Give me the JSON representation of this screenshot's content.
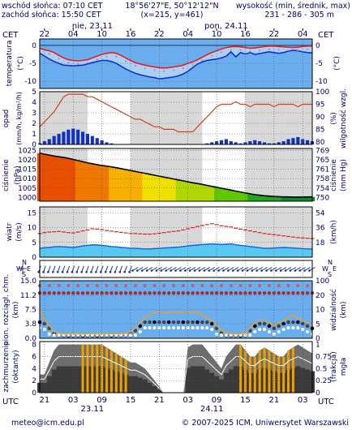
{
  "header": {
    "sunrise": "wschód słońca: 07:10 CET",
    "sunset": "zachód słońca: 15:50 CET",
    "coords": "18°56'27\"E, 50°12'12\"N",
    "grid": "(x=215, y=461)",
    "elev_title": "wysokość (min, średnik, max)",
    "elev_values": "231 - 286 - 305 m"
  },
  "top_axis": {
    "tz_left": "CET",
    "tz_right": "CET",
    "hours": [
      "22",
      "04",
      "10",
      "16",
      "22",
      "04",
      "10",
      "16",
      "22",
      "04"
    ],
    "day1": "nie, 23.11",
    "day2": "pon, 24.11"
  },
  "bottom_axis": {
    "tz_left": "UTC",
    "tz_right": "UTC",
    "hours": [
      "21",
      "03",
      "09",
      "15",
      "21",
      "03",
      "09",
      "15",
      "21",
      "03"
    ],
    "day1": "23.11",
    "day2": "24.11"
  },
  "footer": {
    "email": "meteo@icm.edu.pl",
    "copyright": "© 2007-2025 ICM, Uniwersytet Warszawski"
  },
  "panels": {
    "temperature": {
      "left_label": "temperatura",
      "left_unit": "(°C)",
      "right_unit": "(°C)",
      "ticks": [
        "0",
        "-5",
        "-10"
      ]
    },
    "precip": {
      "left_label": "opad",
      "left_unit": "(mm/h, kg/m²/h)",
      "right_label": "wilgotność wzgl.",
      "right_unit": "(%)",
      "left_ticks": [
        "5",
        "4",
        "3",
        "2",
        "1",
        "0"
      ],
      "right_ticks": [
        "100",
        "95",
        "90",
        "85",
        "80"
      ]
    },
    "pressure": {
      "left_label": "ciśnienie",
      "left_unit": "(hPa)",
      "right_label": "ciśnienie",
      "right_unit": "(mm Hg)",
      "left_ticks": [
        "1025",
        "1020",
        "1015",
        "1010",
        "1005",
        "1000"
      ],
      "right_ticks": [
        "769",
        "765",
        "761",
        "758",
        "754",
        "750"
      ]
    },
    "wind": {
      "left_label": "wiatr",
      "left_unit": "(m/s)",
      "right_unit": "(km/h)",
      "left_ticks": [
        "15",
        "10",
        "5",
        "0"
      ],
      "right_ticks": [
        "54",
        "36",
        "18"
      ]
    },
    "direction": {
      "compass": "WNE S"
    },
    "cloud": {
      "left_label": "pion. rozciągł. chm.",
      "left_unit": "(km)",
      "right_label": "widzialność",
      "right_unit": "(km)",
      "left_ticks": [
        "15.0",
        "11.2",
        "7.5",
        "3.8",
        "0.0"
      ],
      "right_ticks": [
        "100",
        "20",
        "10",
        "5",
        "0"
      ]
    },
    "cover": {
      "left_label": "zachmurzenie",
      "left_unit": "(oktanty)",
      "right_label": "(frakcja)",
      "right_unit": "mgła",
      "left_ticks": [
        "8",
        "6",
        "4",
        "2",
        "0"
      ],
      "right_ticks": [
        "1",
        "0.75",
        "0.5",
        "0.25",
        "0"
      ]
    }
  },
  "colors": {
    "temp": "#e02020",
    "dew": "#1030d0",
    "rh": "#d04020",
    "pressure": "#000000",
    "wind_gust": "#e02020",
    "wind": "#1060e0",
    "vis": "#f0a020",
    "cover": "#f0a000",
    "rain": "#1030c0"
  },
  "chart_data": {
    "type": "line",
    "x": [
      "21",
      "22",
      "23",
      "00",
      "01",
      "02",
      "03",
      "04",
      "05",
      "06",
      "07",
      "08",
      "09",
      "10",
      "11",
      "12",
      "13",
      "14",
      "15",
      "16",
      "17",
      "18",
      "19",
      "20",
      "21",
      "22",
      "23",
      "00",
      "01",
      "02",
      "03",
      "04",
      "05",
      "06",
      "07",
      "08",
      "09",
      "10",
      "11",
      "12",
      "13",
      "14",
      "15",
      "16",
      "17",
      "18",
      "19",
      "20",
      "21",
      "22",
      "23",
      "00",
      "01",
      "02",
      "03",
      "04",
      "05",
      "06"
    ],
    "temperature": [
      -0.8,
      -1.2,
      -1.5,
      -2.0,
      -2.8,
      -3.5,
      -4.0,
      -4.2,
      -4.3,
      -4.2,
      -4.0,
      -3.5,
      -3.0,
      -2.5,
      -2.2,
      -2.0,
      -2.2,
      -2.8,
      -3.5,
      -4.2,
      -4.8,
      -5.2,
      -5.5,
      -5.8,
      -6.0,
      -6.2,
      -6.3,
      -6.2,
      -6.0,
      -5.8,
      -5.5,
      -5.0,
      -4.6,
      -4.0,
      -3.3,
      -2.6,
      -2.0,
      -1.5,
      -1.0,
      -0.6,
      -0.4,
      -0.3,
      -0.4,
      -0.6,
      -0.8,
      -0.7,
      -0.5,
      -0.3,
      -0.2,
      -0.2,
      -0.3,
      -0.4,
      -0.5,
      -0.6,
      -0.5,
      -0.3,
      -0.2,
      -0.2
    ],
    "dew_point": [
      -2.2,
      -3.0,
      -3.8,
      -4.5,
      -5.0,
      -5.5,
      -5.6,
      -5.7,
      -5.6,
      -5.5,
      -5.2,
      -4.8,
      -4.5,
      -4.2,
      -4.2,
      -4.5,
      -5.0,
      -5.8,
      -6.6,
      -7.2,
      -7.8,
      -8.2,
      -8.5,
      -8.8,
      -9.0,
      -9.3,
      -9.2,
      -9.0,
      -8.8,
      -8.5,
      -8.0,
      -7.2,
      -6.2,
      -5.2,
      -4.6,
      -4.2,
      -4.0,
      -3.8,
      -3.5,
      -3.0,
      -1.8,
      -3.2,
      -2.0,
      -2.4,
      -2.0,
      -2.5,
      -2.3,
      -2.0,
      -1.8,
      -2.0,
      -2.2,
      -2.0,
      -1.6,
      -1.4,
      -1.5,
      -1.8,
      -2.0,
      -2.1
    ],
    "precip": [
      0.1,
      0.3,
      0.5,
      0.8,
      1.0,
      1.2,
      1.4,
      1.5,
      1.4,
      1.2,
      1.0,
      0.8,
      0.6,
      0.4,
      0.2,
      0.1,
      0,
      0,
      0,
      0,
      0,
      0,
      0,
      0,
      0,
      0,
      0,
      0,
      0,
      0,
      0,
      0,
      0,
      0,
      0,
      0.1,
      0.2,
      0.3,
      0.4,
      0.5,
      0.3,
      0.2,
      0.1,
      0.2,
      0.3,
      0.4,
      0.3,
      0.2,
      0.1,
      0.1,
      0.2,
      0.3,
      0.5,
      0.6,
      0.7,
      0.5,
      0.4,
      0.3
    ],
    "humidity": [
      86,
      88,
      90,
      92,
      95,
      98,
      99,
      99,
      99,
      99,
      98,
      98,
      97,
      96,
      95,
      94,
      93,
      92,
      91,
      90,
      89,
      89,
      88,
      87,
      86,
      86,
      85,
      85,
      85,
      84,
      84,
      84,
      84,
      86,
      88,
      90,
      92,
      94,
      95,
      95,
      95,
      96,
      95,
      95,
      94,
      95,
      95,
      95,
      95,
      94,
      95,
      95,
      95,
      95,
      94,
      95,
      95,
      95
    ],
    "pressure_hPa": [
      1023.5,
      1023.0,
      1022.5,
      1022.0,
      1021.6,
      1021.2,
      1020.8,
      1020.2,
      1019.6,
      1019.0,
      1018.4,
      1017.9,
      1017.4,
      1017.0,
      1016.6,
      1016.2,
      1015.8,
      1015.3,
      1014.8,
      1014.3,
      1013.8,
      1013.3,
      1012.8,
      1012.3,
      1011.8,
      1011.3,
      1010.8,
      1010.3,
      1009.8,
      1009.3,
      1008.8,
      1008.3,
      1007.8,
      1007.4,
      1006.9,
      1006.4,
      1005.9,
      1005.4,
      1004.9,
      1004.4,
      1003.9,
      1003.4,
      1002.9,
      1002.4,
      1001.9,
      1001.5,
      1001.2,
      1000.9,
      1000.7,
      1000.5,
      1000.4,
      1000.3,
      1000.3,
      1000.2,
      1000.2,
      1000.2,
      1000.3,
      1000.3
    ],
    "wind_ms": [
      3.0,
      3.2,
      3.3,
      3.5,
      3.6,
      3.5,
      3.4,
      3.3,
      3.5,
      3.8,
      4.0,
      4.2,
      4.1,
      4.0,
      3.8,
      3.6,
      3.5,
      3.3,
      3.2,
      3.0,
      3.0,
      2.9,
      2.8,
      2.8,
      2.9,
      3.0,
      3.1,
      3.2,
      3.3,
      3.4,
      3.6,
      3.8,
      4.0,
      4.1,
      4.3,
      4.4,
      4.5,
      4.4,
      4.3,
      4.4,
      4.5,
      4.2,
      4.0,
      3.8,
      3.6,
      3.4,
      3.2,
      3.0,
      3.0,
      3.1,
      3.2,
      3.3,
      3.2,
      3.1,
      3.0,
      2.9,
      2.8,
      2.8
    ],
    "gust_ms": [
      8.0,
      8.3,
      8.5,
      8.6,
      8.7,
      8.5,
      8.3,
      8.2,
      8.5,
      8.9,
      9.2,
      9.6,
      9.5,
      9.3,
      9.0,
      8.8,
      8.6,
      8.4,
      8.2,
      8.0,
      8.0,
      7.9,
      7.8,
      7.8,
      7.9,
      8.1,
      8.3,
      8.5,
      8.7,
      8.9,
      9.2,
      9.6,
      10.0,
      10.4,
      10.7,
      11.0,
      11.3,
      11.0,
      10.6,
      10.4,
      10.2,
      9.8,
      9.5,
      9.2,
      8.9,
      8.6,
      8.3,
      8.0,
      7.8,
      7.6,
      7.4,
      7.2,
      7.0,
      6.8,
      6.6,
      6.5,
      6.4,
      6.3
    ],
    "cloud_top_km": [
      11.8,
      11.8,
      11.8,
      11.8,
      11.8,
      11.8,
      11.8,
      11.8,
      11.8,
      11.8,
      11.8,
      11.8,
      11.8,
      11.8,
      11.8,
      11.8,
      11.8,
      11.8,
      11.8,
      11.8,
      11.8,
      11.8,
      11.8,
      11.8,
      11.8,
      11.8,
      11.8,
      11.8,
      11.8,
      11.8,
      11.8,
      11.8,
      11.8,
      11.8,
      11.8,
      11.8,
      11.8,
      11.8,
      11.8,
      11.8,
      11.8,
      11.8,
      11.8,
      11.8,
      11.8,
      11.8,
      11.8,
      11.8,
      11.8,
      11.8,
      11.8,
      11.8,
      11.8,
      11.8,
      11.8,
      11.8,
      11.8,
      11.8
    ],
    "visibility_km": [
      10,
      6,
      4,
      1.5,
      1,
      0.8,
      0.8,
      0.8,
      0.8,
      0.8,
      0.8,
      0.8,
      0.8,
      0.8,
      0.8,
      0.8,
      0.8,
      0.8,
      1,
      1.5,
      3,
      5,
      7,
      8,
      9,
      9,
      9,
      9,
      9,
      9,
      9,
      9,
      9,
      9,
      8,
      7,
      6,
      4,
      2,
      1,
      0.8,
      0.8,
      0.8,
      1,
      3,
      5,
      6,
      6,
      5,
      4,
      5,
      6,
      7,
      8,
      7,
      6,
      5,
      4
    ],
    "cloud_cover_oct": [
      3,
      3,
      5,
      7,
      8,
      8,
      8,
      8,
      8,
      8,
      8,
      8,
      8,
      8,
      7.5,
      7,
      6.5,
      6,
      5.5,
      5,
      5,
      4.5,
      4,
      3,
      2,
      1,
      0,
      0,
      0,
      0,
      0,
      7.5,
      8,
      8,
      8,
      7,
      6,
      5,
      4,
      6,
      7,
      8,
      8,
      7,
      6,
      6,
      7,
      7.5,
      7,
      6.5,
      6,
      6,
      7,
      7.5,
      8,
      7.5,
      7,
      6.5
    ]
  }
}
